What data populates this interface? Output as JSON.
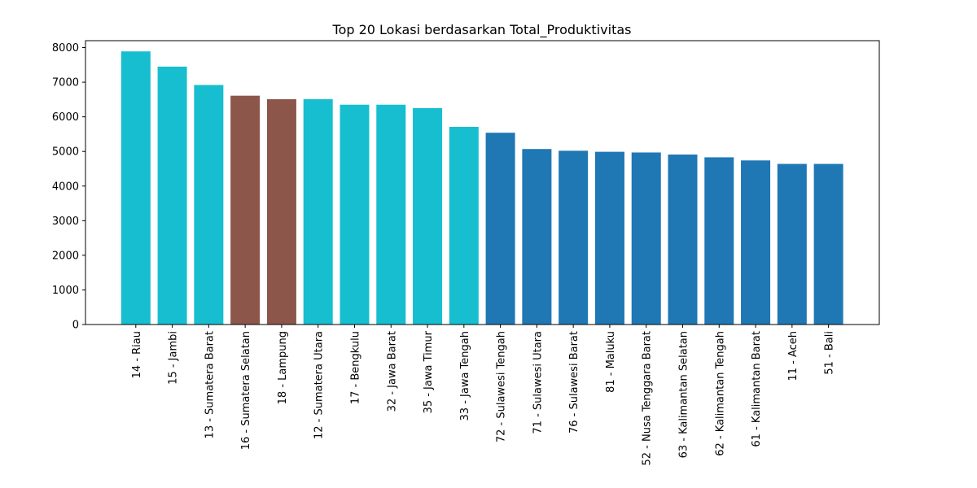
{
  "chart_data": {
    "type": "bar",
    "title": "Top 20 Lokasi berdasarkan Total_Produktivitas",
    "xlabel": "",
    "ylabel": "",
    "ylim": [
      0,
      8200
    ],
    "yticks": [
      0,
      1000,
      2000,
      3000,
      4000,
      5000,
      6000,
      7000,
      8000
    ],
    "grid": false,
    "categories": [
      "14 - Riau",
      "15 - Jambi",
      "13 - Sumatera Barat",
      "16 - Sumatera Selatan",
      "18 - Lampung",
      "12 - Sumatera Utara",
      "17 - Bengkulu",
      "32 - Jawa Barat",
      "35 - Jawa Timur",
      "33 - Jawa Tengah",
      "72 - Sulawesi Tengah",
      "71 - Sulawesi Utara",
      "76 - Sulawesi Barat",
      "81 - Maluku",
      "52 - Nusa Tenggara Barat",
      "63 - Kalimantan Selatan",
      "62 - Kalimantan Tengah",
      "61 - Kalimantan Barat",
      "11 - Aceh",
      "51 - Bali"
    ],
    "values": [
      7890,
      7450,
      6920,
      6610,
      6510,
      6510,
      6350,
      6350,
      6250,
      5710,
      5540,
      5070,
      5020,
      4990,
      4970,
      4910,
      4830,
      4740,
      4640,
      4640
    ],
    "bar_colors": [
      "#17becf",
      "#17becf",
      "#17becf",
      "#8c564b",
      "#8c564b",
      "#17becf",
      "#17becf",
      "#17becf",
      "#17becf",
      "#17becf",
      "#1f77b4",
      "#1f77b4",
      "#1f77b4",
      "#1f77b4",
      "#1f77b4",
      "#1f77b4",
      "#1f77b4",
      "#1f77b4",
      "#1f77b4",
      "#1f77b4"
    ]
  }
}
